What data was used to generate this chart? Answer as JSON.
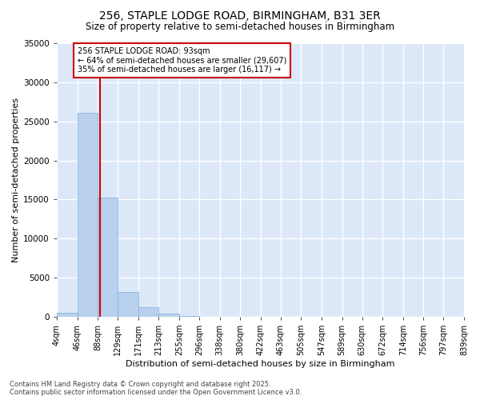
{
  "title": "256, STAPLE LODGE ROAD, BIRMINGHAM, B31 3ER",
  "subtitle": "Size of property relative to semi-detached houses in Birmingham",
  "xlabel": "Distribution of semi-detached houses by size in Birmingham",
  "ylabel": "Number of semi-detached properties",
  "bar_values": [
    500,
    26100,
    15200,
    3200,
    1200,
    400,
    100,
    0,
    0,
    0,
    0,
    0,
    0,
    0,
    0,
    0,
    0,
    0,
    0,
    0
  ],
  "bin_edges": [
    4,
    46,
    88,
    129,
    171,
    213,
    255,
    296,
    338,
    380,
    422,
    463,
    505,
    547,
    589,
    630,
    672,
    714,
    756,
    797,
    839
  ],
  "tick_labels": [
    "4sqm",
    "46sqm",
    "88sqm",
    "129sqm",
    "171sqm",
    "213sqm",
    "255sqm",
    "296sqm",
    "338sqm",
    "380sqm",
    "422sqm",
    "463sqm",
    "505sqm",
    "547sqm",
    "589sqm",
    "630sqm",
    "672sqm",
    "714sqm",
    "756sqm",
    "797sqm",
    "839sqm"
  ],
  "bar_color": "#b8d0ee",
  "bar_edgecolor": "#7aafd4",
  "plot_bg_color": "#dce8f8",
  "figure_bg_color": "#ffffff",
  "grid_color": "#ffffff",
  "vline_x": 93,
  "vline_color": "#cc0000",
  "ylim": [
    0,
    35000
  ],
  "yticks": [
    0,
    5000,
    10000,
    15000,
    20000,
    25000,
    30000,
    35000
  ],
  "annotation_text": "256 STAPLE LODGE ROAD: 93sqm\n← 64% of semi-detached houses are smaller (29,607)\n35% of semi-detached houses are larger (16,117) →",
  "annotation_box_facecolor": "#ffffff",
  "annotation_box_edgecolor": "#cc0000",
  "footer_text": "Contains HM Land Registry data © Crown copyright and database right 2025.\nContains public sector information licensed under the Open Government Licence v3.0.",
  "title_fontsize": 10,
  "subtitle_fontsize": 8.5,
  "ylabel_fontsize": 8,
  "xlabel_fontsize": 8,
  "tick_fontsize": 7,
  "ytick_fontsize": 7.5,
  "annotation_fontsize": 7,
  "footer_fontsize": 6
}
